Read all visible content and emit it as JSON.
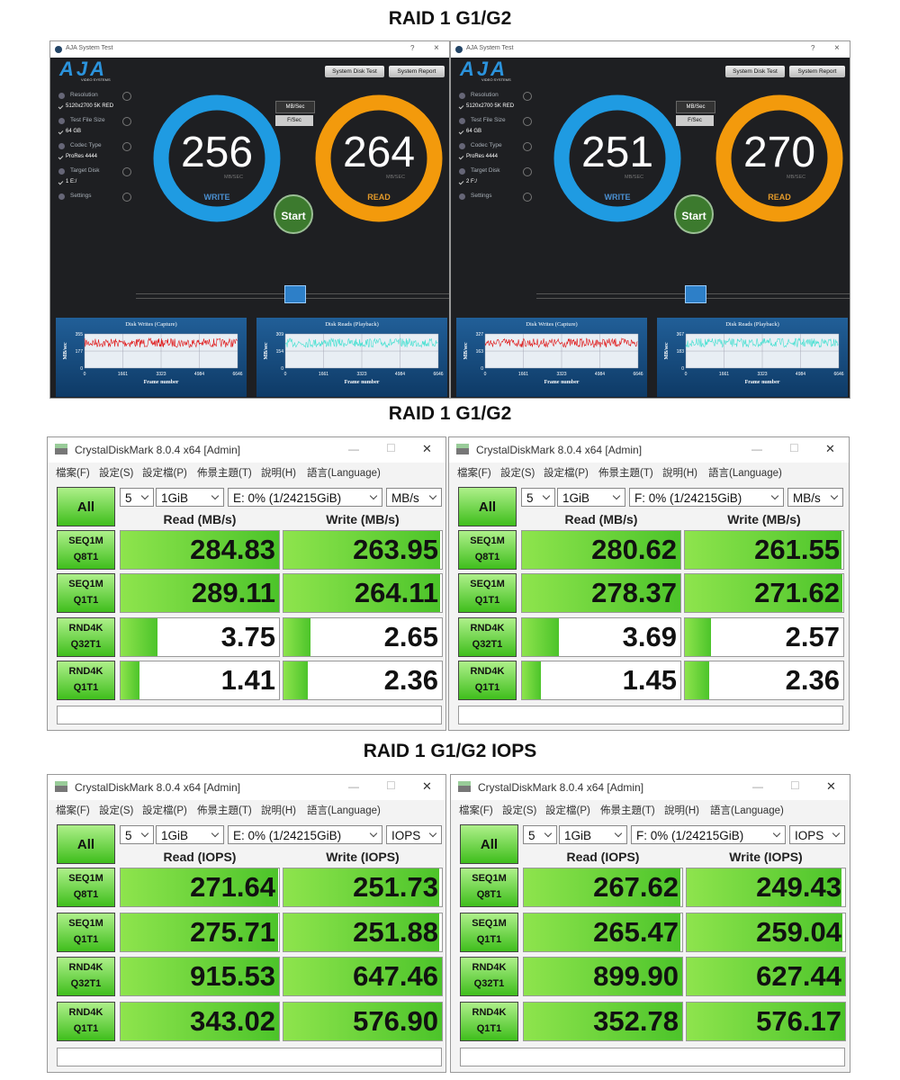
{
  "sections": [
    {
      "title": "RAID 1 G1/G2",
      "windows": [
        {
          "title": "AJA System Test",
          "controls": [
            "?",
            "×"
          ],
          "logo": "AJA",
          "logo_sub": "VIDEO SYSTEMS",
          "buttons": [
            "System Disk Test",
            "System Report"
          ],
          "settings": [
            {
              "label": "Resolution",
              "value": "5120x2700 5K RED"
            },
            {
              "label": "Test File Size",
              "value": "64 GB"
            },
            {
              "label": "Codec Type",
              "value": "ProRes 4444"
            },
            {
              "label": "Target Disk",
              "value": "1 E:/"
            },
            {
              "label": "Settings"
            }
          ],
          "units": [
            "MB/Sec",
            "F/Sec"
          ],
          "write": {
            "value": 256,
            "unit": "MB/SEC",
            "label": "WRITE"
          },
          "read": {
            "value": 264,
            "unit": "MB/SEC",
            "label": "READ"
          },
          "start": "Start",
          "graphs": [
            {
              "title": "Disk Writes (Capture)",
              "y_label": "MB/sec",
              "x_label": "Frame number",
              "yticks": [
                355,
                177,
                0
              ],
              "xticks": [
                0,
                1661,
                3323,
                4984,
                6646
              ]
            },
            {
              "title": "Disk Reads (Playback)",
              "y_label": "MB/sec",
              "x_label": "Frame number",
              "yticks": [
                309,
                154,
                0
              ],
              "xticks": [
                0,
                1661,
                3323,
                4984,
                6646
              ]
            }
          ]
        },
        {
          "title": "AJA System Test",
          "controls": [
            "?",
            "×"
          ],
          "logo": "AJA",
          "logo_sub": "VIDEO SYSTEMS",
          "buttons": [
            "System Disk Test",
            "System Report"
          ],
          "settings": [
            {
              "label": "Resolution",
              "value": "5120x2700 5K RED"
            },
            {
              "label": "Test File Size",
              "value": "64 GB"
            },
            {
              "label": "Codec Type",
              "value": "ProRes 4444"
            },
            {
              "label": "Target Disk",
              "value": "2 F:/"
            },
            {
              "label": "Settings"
            }
          ],
          "units": [
            "MB/Sec",
            "F/Sec"
          ],
          "write": {
            "value": 251,
            "unit": "MB/SEC",
            "label": "WRITE"
          },
          "read": {
            "value": 270,
            "unit": "MB/SEC",
            "label": "READ"
          },
          "start": "Start",
          "graphs": [
            {
              "title": "Disk Writes (Capture)",
              "y_label": "MB/sec",
              "x_label": "Frame number",
              "yticks": [
                327,
                163,
                0
              ],
              "xticks": [
                0,
                1661,
                3323,
                4984,
                6646
              ]
            },
            {
              "title": "Disk Reads (Playback)",
              "y_label": "MB/sec",
              "x_label": "Frame number",
              "yticks": [
                367,
                183,
                0
              ],
              "xticks": [
                0,
                1661,
                3323,
                4984,
                6646
              ]
            }
          ]
        }
      ]
    },
    {
      "title": "RAID 1 G1/G2",
      "windows": [
        {
          "title": "CrystalDiskMark 8.0.4 x64 [Admin]",
          "controls": [
            "—",
            "☐",
            "✕"
          ],
          "menu": [
            "檔案(F)",
            "設定(S)",
            "設定檔(P)",
            "佈景主題(T)",
            "說明(H)",
            "語言(Language)"
          ],
          "all": "All",
          "count": "5",
          "size": "1GiB",
          "drive": "E: 0% (1/24215GiB)",
          "unit": "MB/s",
          "headers": [
            "Read (MB/s)",
            "Write (MB/s)"
          ],
          "rows": [
            {
              "test": "SEQ1M",
              "queue": "Q8T1",
              "read": 284.83,
              "write": 263.95
            },
            {
              "test": "SEQ1M",
              "queue": "Q1T1",
              "read": 289.11,
              "write": 264.11
            },
            {
              "test": "RND4K",
              "queue": "Q32T1",
              "read": 3.75,
              "write": 2.65
            },
            {
              "test": "RND4K",
              "queue": "Q1T1",
              "read": 1.41,
              "write": 2.36
            }
          ]
        },
        {
          "title": "CrystalDiskMark 8.0.4 x64 [Admin]",
          "controls": [
            "—",
            "☐",
            "✕"
          ],
          "menu": [
            "檔案(F)",
            "設定(S)",
            "設定檔(P)",
            "佈景主題(T)",
            "說明(H)",
            "語言(Language)"
          ],
          "all": "All",
          "count": "5",
          "size": "1GiB",
          "drive": "F: 0% (1/24215GiB)",
          "unit": "MB/s",
          "headers": [
            "Read (MB/s)",
            "Write (MB/s)"
          ],
          "rows": [
            {
              "test": "SEQ1M",
              "queue": "Q8T1",
              "read": 280.62,
              "write": 261.55
            },
            {
              "test": "SEQ1M",
              "queue": "Q1T1",
              "read": 278.37,
              "write": 271.62
            },
            {
              "test": "RND4K",
              "queue": "Q32T1",
              "read": 3.69,
              "write": 2.57
            },
            {
              "test": "RND4K",
              "queue": "Q1T1",
              "read": 1.45,
              "write": 2.36
            }
          ]
        }
      ]
    },
    {
      "title": "RAID 1 G1/G2 IOPS",
      "windows": [
        {
          "title": "CrystalDiskMark 8.0.4 x64 [Admin]",
          "controls": [
            "—",
            "☐",
            "✕"
          ],
          "menu": [
            "檔案(F)",
            "設定(S)",
            "設定檔(P)",
            "佈景主題(T)",
            "說明(H)",
            "語言(Language)"
          ],
          "all": "All",
          "count": "5",
          "size": "1GiB",
          "drive": "E: 0% (1/24215GiB)",
          "unit": "IOPS",
          "headers": [
            "Read (IOPS)",
            "Write (IOPS)"
          ],
          "rows": [
            {
              "test": "SEQ1M",
              "queue": "Q8T1",
              "read": 271.64,
              "write": 251.73
            },
            {
              "test": "SEQ1M",
              "queue": "Q1T1",
              "read": 275.71,
              "write": 251.88
            },
            {
              "test": "RND4K",
              "queue": "Q32T1",
              "read": 915.53,
              "write": 647.46
            },
            {
              "test": "RND4K",
              "queue": "Q1T1",
              "read": 343.02,
              "write": {
                "value": 576.9,
                "label": "576.90"
              }
            }
          ]
        },
        {
          "title": "CrystalDiskMark 8.0.4 x64 [Admin]",
          "controls": [
            "—",
            "☐",
            "✕"
          ],
          "menu": [
            "檔案(F)",
            "設定(S)",
            "設定檔(P)",
            "佈景主題(T)",
            "說明(H)",
            "語言(Language)"
          ],
          "all": "All",
          "count": "5",
          "size": "1GiB",
          "drive": "F: 0% (1/24215GiB)",
          "unit": "IOPS",
          "headers": [
            "Read (IOPS)",
            "Write (IOPS)"
          ],
          "rows": [
            {
              "test": "SEQ1M",
              "queue": "Q8T1",
              "read": 267.62,
              "write": 249.43
            },
            {
              "test": "SEQ1M",
              "queue": "Q1T1",
              "read": 265.47,
              "write": 259.04
            },
            {
              "test": "RND4K",
              "queue": "Q32T1",
              "read": {
                "value": 899.9,
                "label": "899.90"
              },
              "write": 627.44
            },
            {
              "test": "RND4K",
              "queue": "Q1T1",
              "read": 352.78,
              "write": 576.17
            }
          ]
        }
      ]
    }
  ]
}
